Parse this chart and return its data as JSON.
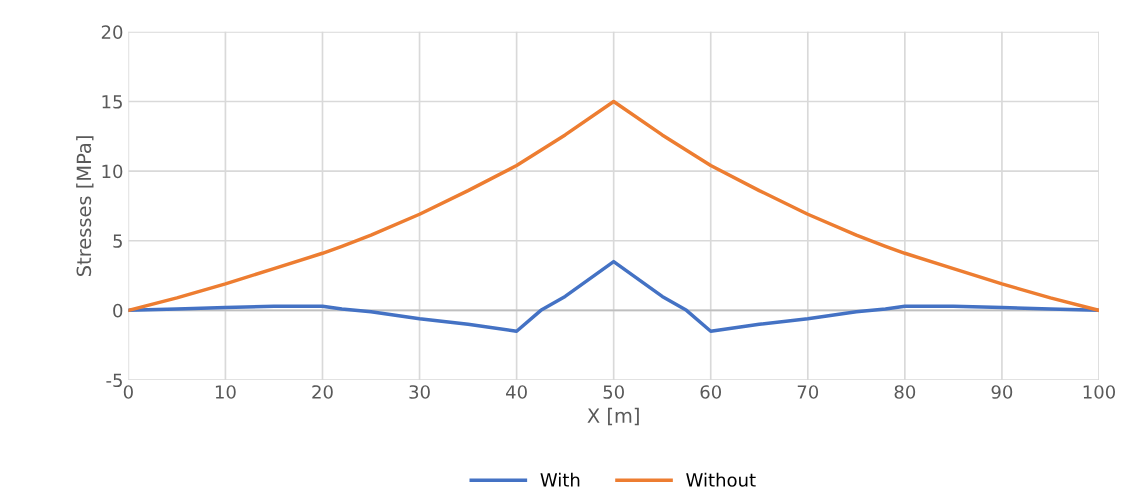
{
  "chart_data": {
    "type": "line",
    "xlabel": "X [m]",
    "ylabel": "Stresses [MPa]",
    "x": [
      0,
      5,
      10,
      15,
      20,
      22,
      25,
      30,
      35,
      40,
      42.5,
      45,
      50,
      55,
      57.5,
      60,
      65,
      70,
      75,
      78,
      80,
      85,
      90,
      95,
      100
    ],
    "series": [
      {
        "name": "With",
        "color": "#4472c4",
        "values": [
          0,
          0.1,
          0.2,
          0.3,
          0.3,
          0.1,
          -0.1,
          -0.6,
          -1.0,
          -1.5,
          0,
          1.0,
          3.5,
          1.0,
          0,
          -1.5,
          -1.0,
          -0.6,
          -0.1,
          0.1,
          0.3,
          0.3,
          0.2,
          0.1,
          0
        ]
      },
      {
        "name": "Without",
        "color": "#ed7d31",
        "values": [
          0,
          0.9,
          1.9,
          3.0,
          4.1,
          4.6,
          5.4,
          6.9,
          8.6,
          10.4,
          11.5,
          12.6,
          15,
          12.6,
          11.5,
          10.4,
          8.6,
          6.9,
          5.4,
          4.6,
          4.1,
          3.0,
          1.9,
          0.9,
          0
        ]
      }
    ],
    "xlim": [
      0,
      100
    ],
    "xticks": [
      0,
      10,
      20,
      30,
      40,
      50,
      60,
      70,
      80,
      90,
      100
    ],
    "ylim": [
      -5,
      20
    ],
    "yticks": [
      -5,
      0,
      5,
      10,
      15,
      20
    ],
    "grid": true,
    "legend": "bottom",
    "line_style": "solid",
    "marker": "none"
  }
}
